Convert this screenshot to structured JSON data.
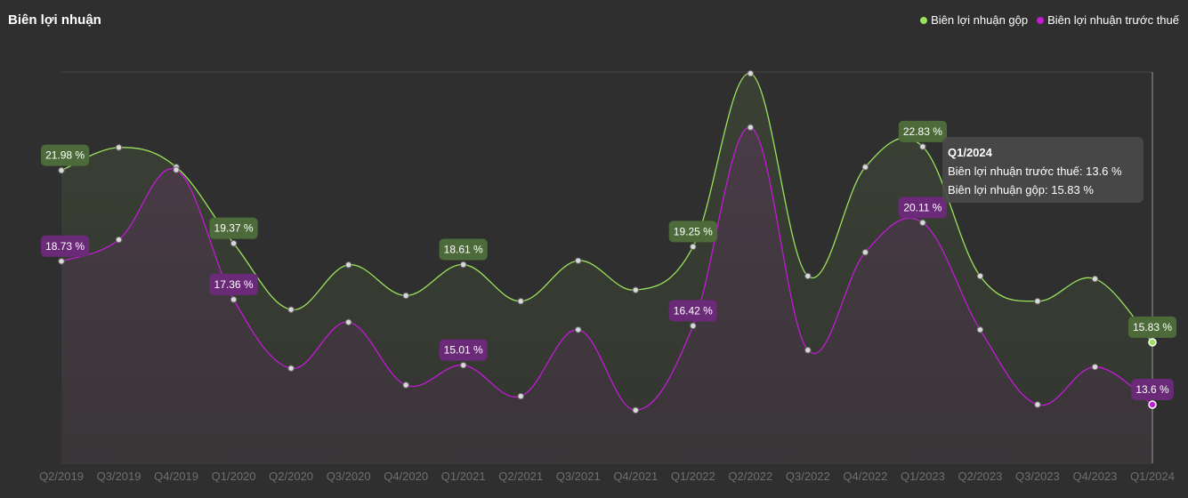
{
  "header": {
    "title": "Biên lợi nhuận"
  },
  "legend": [
    {
      "label": "Biên lợi nhuận gộp",
      "color": "#9be15d"
    },
    {
      "label": "Biên lợi nhuận trước thuế",
      "color": "#c21ad6"
    }
  ],
  "tooltip": {
    "title": "Q1/2024",
    "line1": "Biên lợi nhuận trước thuế: 13.6 %",
    "line2": "Biên lợi nhuận gộp: 15.83 %"
  },
  "chart_data": {
    "type": "line",
    "title": "Biên lợi nhuận",
    "categories": [
      "Q2/2019",
      "Q3/2019",
      "Q4/2019",
      "Q1/2020",
      "Q2/2020",
      "Q3/2020",
      "Q4/2020",
      "Q1/2021",
      "Q2/2021",
      "Q3/2021",
      "Q4/2021",
      "Q1/2022",
      "Q2/2022",
      "Q3/2022",
      "Q4/2022",
      "Q1/2023",
      "Q2/2023",
      "Q3/2023",
      "Q4/2023",
      "Q1/2024"
    ],
    "ylim": [
      11.5,
      25.5
    ],
    "grid": false,
    "legend_position": "top-right",
    "series": [
      {
        "name": "Biên lợi nhuận gộp",
        "color": "#9be15d",
        "values": [
          21.98,
          22.8,
          22.1,
          19.37,
          17.0,
          18.6,
          17.5,
          18.61,
          17.3,
          18.75,
          17.7,
          19.25,
          25.45,
          18.2,
          22.1,
          22.83,
          18.2,
          17.3,
          18.1,
          15.83
        ],
        "labels": [
          {
            "category": "Q2/2019",
            "text": "21.98 %"
          },
          {
            "category": "Q1/2020",
            "text": "19.37 %"
          },
          {
            "category": "Q1/2021",
            "text": "18.61 %"
          },
          {
            "category": "Q1/2022",
            "text": "19.25 %"
          },
          {
            "category": "Q1/2023",
            "text": "22.83 %"
          },
          {
            "category": "Q1/2024",
            "text": "15.83 %"
          }
        ]
      },
      {
        "name": "Biên lợi nhuận trước thuế",
        "color": "#c21ad6",
        "values": [
          18.73,
          19.5,
          22.0,
          17.36,
          14.9,
          16.55,
          14.3,
          15.01,
          13.9,
          16.28,
          13.4,
          16.42,
          23.52,
          15.55,
          19.05,
          20.11,
          16.28,
          13.6,
          14.95,
          13.6
        ],
        "labels": [
          {
            "category": "Q2/2019",
            "text": "18.73 %"
          },
          {
            "category": "Q1/2020",
            "text": "17.36 %"
          },
          {
            "category": "Q1/2021",
            "text": "15.01 %"
          },
          {
            "category": "Q1/2022",
            "text": "16.42 %"
          },
          {
            "category": "Q1/2023",
            "text": "20.11 %"
          },
          {
            "category": "Q1/2024",
            "text": "13.6 %"
          }
        ]
      }
    ],
    "active_category": "Q1/2024"
  }
}
